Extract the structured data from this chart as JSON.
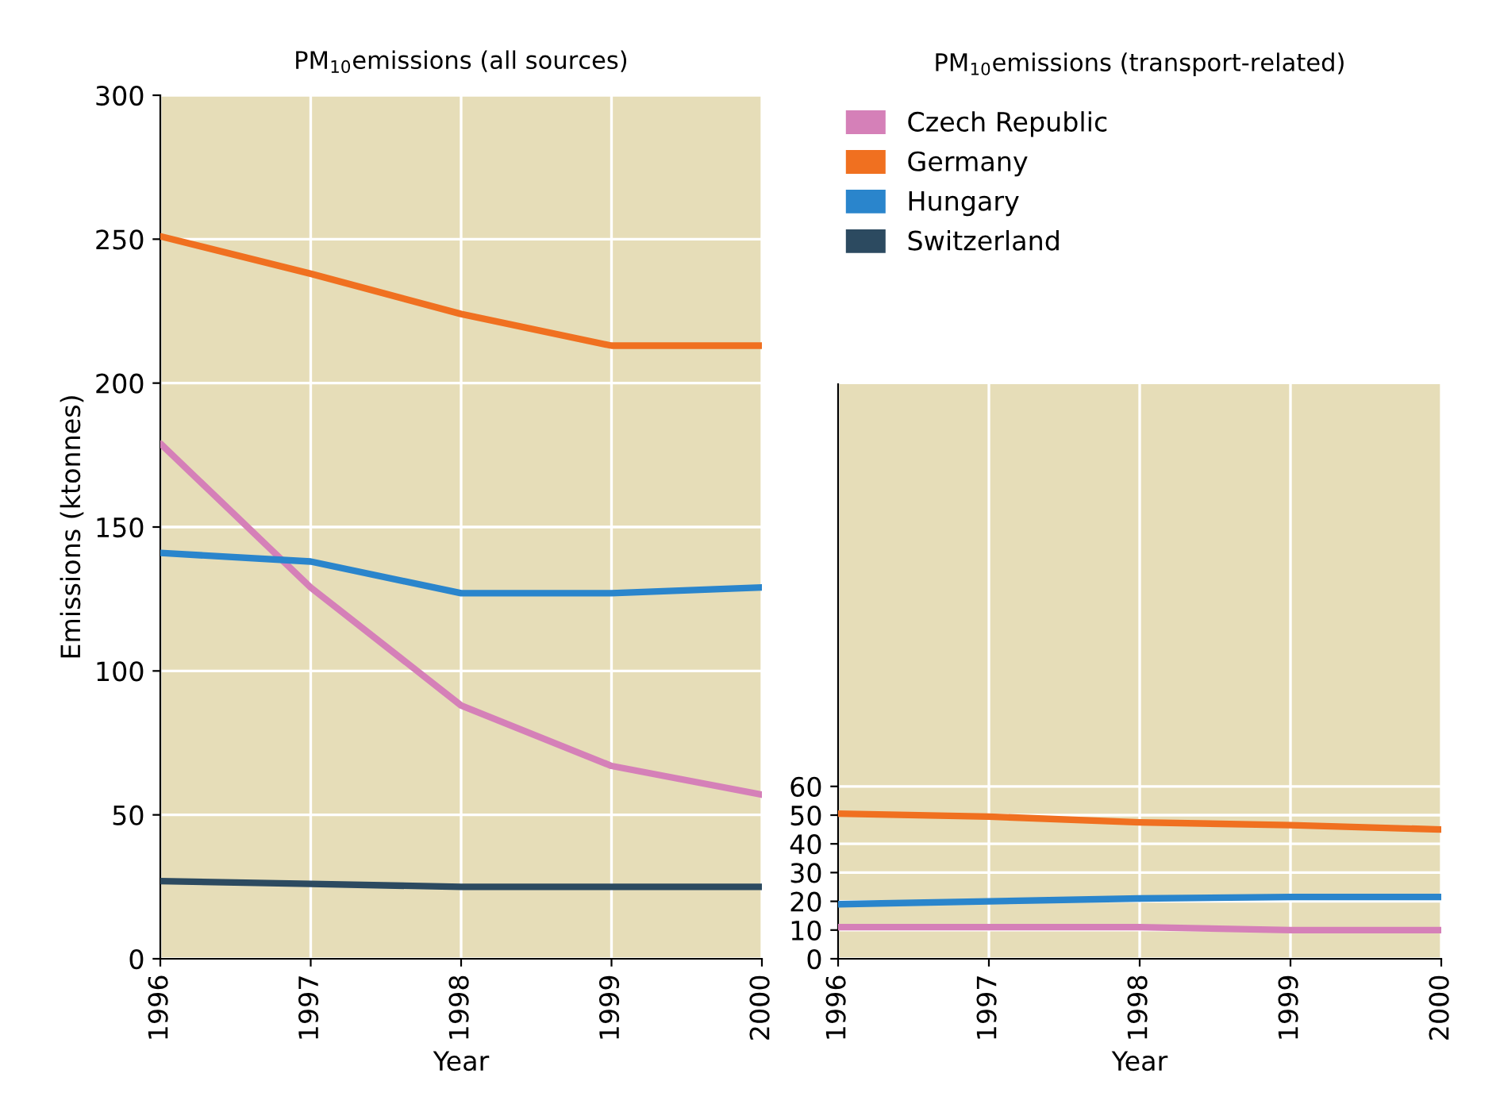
{
  "chart_data": [
    {
      "type": "line",
      "title": "PM$_{10}$emissions (all sources)",
      "xlabel": "Year",
      "ylabel": "Emissions (ktonnes)",
      "x": [
        1996,
        1997,
        1998,
        1999,
        2000
      ],
      "xlim": [
        1996,
        2000
      ],
      "xticks": [
        1996,
        1997,
        1998,
        1999,
        2000
      ],
      "ylim": [
        0,
        300
      ],
      "yticks": [
        0,
        50,
        100,
        150,
        200,
        250,
        300
      ],
      "grid": true,
      "legend": "right",
      "marker": "none",
      "line_style": "solid",
      "series": [
        {
          "name": "Czech Republic",
          "color": "#d580b8",
          "values": [
            179,
            129,
            88,
            67,
            57
          ]
        },
        {
          "name": "Germany",
          "color": "#f07020",
          "values": [
            251,
            238,
            224,
            213,
            213
          ]
        },
        {
          "name": "Hungary",
          "color": "#2a85cc",
          "values": [
            141,
            138,
            127,
            127,
            129
          ]
        },
        {
          "name": "Switzerland",
          "color": "#2c4a60",
          "values": [
            27,
            26,
            25,
            25,
            25
          ]
        }
      ]
    },
    {
      "type": "line",
      "title": "PM$_{10}$emissions (transport-related)",
      "xlabel": "Year",
      "x": [
        1996,
        1997,
        1998,
        1999,
        2000
      ],
      "xlim": [
        1996,
        2000
      ],
      "xticks": [
        1996,
        1997,
        1998,
        1999,
        2000
      ],
      "ylim": [
        0,
        200
      ],
      "yticks": [
        0,
        10,
        20,
        30,
        40,
        50,
        60
      ],
      "grid": true,
      "marker": "none",
      "line_style": "solid",
      "series": [
        {
          "color": "#d580b8",
          "values": [
            11,
            11,
            11,
            10,
            10
          ]
        },
        {
          "color": "#f07020",
          "values": [
            50.5,
            49.5,
            47.5,
            46.5,
            45
          ]
        },
        {
          "color": "#2a85cc",
          "values": [
            19,
            20,
            21,
            21.5,
            21.5
          ]
        }
      ]
    }
  ]
}
